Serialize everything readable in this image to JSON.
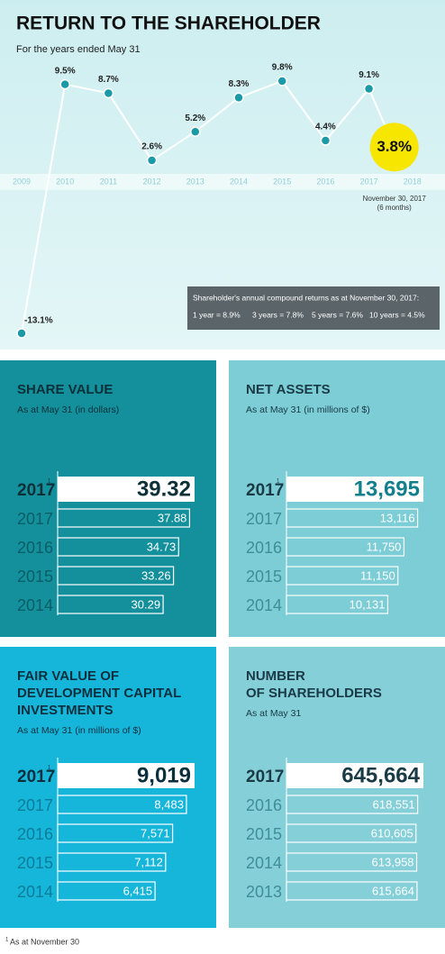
{
  "chart_data": [
    {
      "type": "line",
      "title": "RETURN TO THE SHAREHOLDER",
      "subtitle": "For the years ended May 31",
      "categories": [
        "2009",
        "2010",
        "2011",
        "2012",
        "2013",
        "2014",
        "2015",
        "2016",
        "2017",
        "2018"
      ],
      "values": [
        -13.1,
        9.5,
        8.7,
        2.6,
        5.2,
        8.3,
        9.8,
        4.4,
        9.1,
        null
      ],
      "value_labels": [
        "-13.1%",
        "9.5%",
        "8.7%",
        "2.6%",
        "5.2%",
        "8.3%",
        "9.8%",
        "4.4%",
        "9.1%",
        null
      ],
      "color": "#1a9aa6",
      "highlight": {
        "value": 3.8,
        "value_label": "3.8%",
        "label": "November 30, 2017",
        "sublabel": "(6 months)",
        "color": "#f7e600"
      },
      "note": {
        "title": "Shareholder's annual compound returns as at November 30, 2017:",
        "items": [
          "1 year = 8.9%",
          "3 years = 7.8%",
          "5 years = 7.6%",
          "10 years = 4.5%"
        ]
      }
    },
    {
      "type": "hbar",
      "title": [
        "SHARE VALUE"
      ],
      "subtitle": "As at May 31 (in dollars)",
      "categories": [
        "2017",
        "2017",
        "2016",
        "2015",
        "2014"
      ],
      "category_note": "1",
      "values": [
        39.32,
        37.88,
        34.73,
        33.26,
        30.29
      ],
      "value_labels": [
        "39.32",
        "37.88",
        "34.73",
        "33.26",
        "30.29"
      ],
      "color": "#13909c"
    },
    {
      "type": "hbar",
      "title": [
        "NET ASSETS"
      ],
      "subtitle": "As at May 31 (in millions of $)",
      "categories": [
        "2017",
        "2017",
        "2016",
        "2015",
        "2014"
      ],
      "category_note": "1",
      "values": [
        13695,
        13116,
        11750,
        11150,
        10131
      ],
      "value_labels": [
        "13,695",
        "13,116",
        "11,750",
        "11,150",
        "10,131"
      ],
      "color": "#7ccdd6"
    },
    {
      "type": "hbar",
      "title": [
        "FAIR VALUE OF",
        "DEVELOPMENT CAPITAL",
        "INVESTMENTS"
      ],
      "subtitle": "As at May 31 (in millions of $)",
      "categories": [
        "2017",
        "2017",
        "2016",
        "2015",
        "2014"
      ],
      "category_note": "1",
      "values": [
        9019,
        8483,
        7571,
        7112,
        6415
      ],
      "value_labels": [
        "9,019",
        "8,483",
        "7,571",
        "7,112",
        "6,415"
      ],
      "color": "#16b6db"
    },
    {
      "type": "hbar",
      "title": [
        "NUMBER",
        "OF SHAREHOLDERS"
      ],
      "subtitle": "As at May 31",
      "categories": [
        "2017",
        "2016",
        "2015",
        "2014",
        "2013"
      ],
      "values": [
        645664,
        618551,
        610605,
        613958,
        615664
      ],
      "value_labels": [
        "645,664",
        "618,551",
        "610,605",
        "613,958",
        "615,664"
      ],
      "color": "#84cfd8"
    }
  ],
  "footnote": {
    "marker": "1",
    "text": "As at November 30"
  }
}
